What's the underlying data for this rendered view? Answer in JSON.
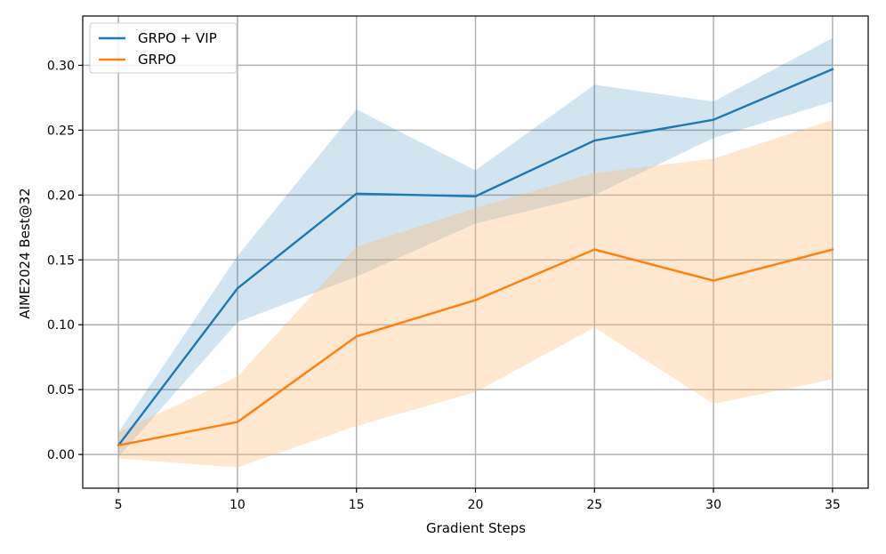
{
  "chart_data": {
    "type": "line",
    "title": "",
    "xlabel": "Gradient Steps",
    "ylabel": "AIME2024 Best@32",
    "x": [
      5,
      10,
      15,
      20,
      25,
      30,
      35
    ],
    "xlim": [
      3.5,
      36.5
    ],
    "ylim": [
      -0.026,
      0.338
    ],
    "xticks": [
      5,
      10,
      15,
      20,
      25,
      30,
      35
    ],
    "xtick_labels": [
      "5",
      "10",
      "15",
      "20",
      "25",
      "30",
      "35"
    ],
    "yticks": [
      0.0,
      0.05,
      0.1,
      0.15,
      0.2,
      0.25,
      0.3
    ],
    "ytick_labels": [
      "0.00",
      "0.05",
      "0.10",
      "0.15",
      "0.20",
      "0.25",
      "0.30"
    ],
    "grid": true,
    "legend_position": "top-left",
    "series": [
      {
        "name": "GRPO + VIP",
        "color": "#1f77b4",
        "band_color": "#1f77b4",
        "values": [
          0.007,
          0.128,
          0.201,
          0.199,
          0.242,
          0.258,
          0.297
        ],
        "lower": [
          -0.002,
          0.102,
          0.137,
          0.178,
          0.2,
          0.244,
          0.272
        ],
        "upper": [
          0.017,
          0.153,
          0.266,
          0.219,
          0.285,
          0.272,
          0.321
        ]
      },
      {
        "name": "GRPO",
        "color": "#ff7f0e",
        "band_color": "#ffbb78",
        "values": [
          0.007,
          0.025,
          0.091,
          0.119,
          0.158,
          0.134,
          0.158
        ],
        "lower": [
          -0.003,
          -0.01,
          0.022,
          0.048,
          0.098,
          0.039,
          0.058
        ],
        "upper": [
          0.017,
          0.06,
          0.16,
          0.19,
          0.217,
          0.228,
          0.258
        ]
      }
    ]
  }
}
